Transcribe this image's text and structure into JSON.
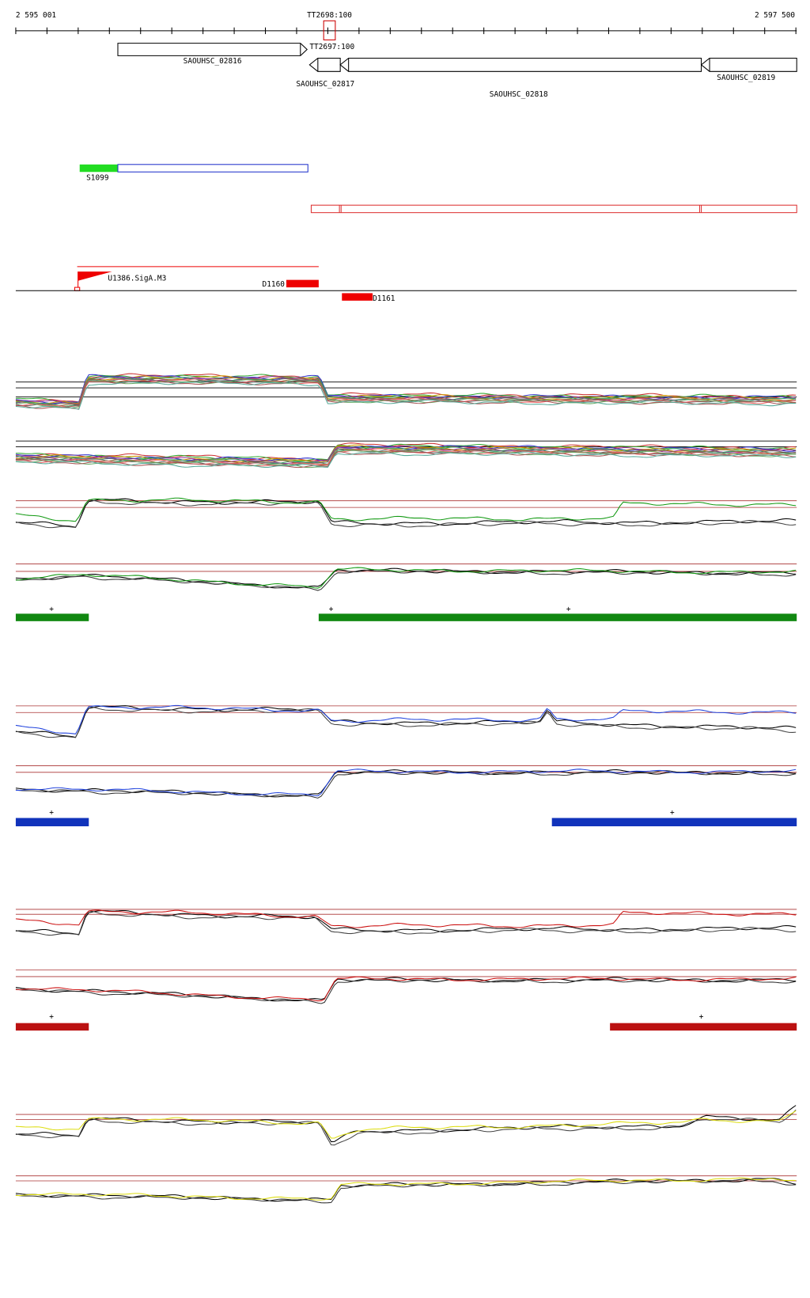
{
  "ruler": {
    "start": "2 595 001",
    "end": "2 597 500"
  },
  "markers": [
    "TT2698:100",
    "TT2697:100"
  ],
  "genes": [
    "SAOUHSC_02816",
    "SAOUHSC_02817",
    "SAOUHSC_02818",
    "SAOUHSC_02819"
  ],
  "features": [
    "S1099",
    "U1386.SigA.M3",
    "D1160",
    "D1161"
  ],
  "tracks": {
    "green": {
      "strands": [
        "+",
        "+",
        "+"
      ]
    },
    "blue": {
      "strands": [
        "+",
        "+"
      ]
    },
    "red": {
      "strands": [
        "+",
        "+"
      ]
    }
  }
}
